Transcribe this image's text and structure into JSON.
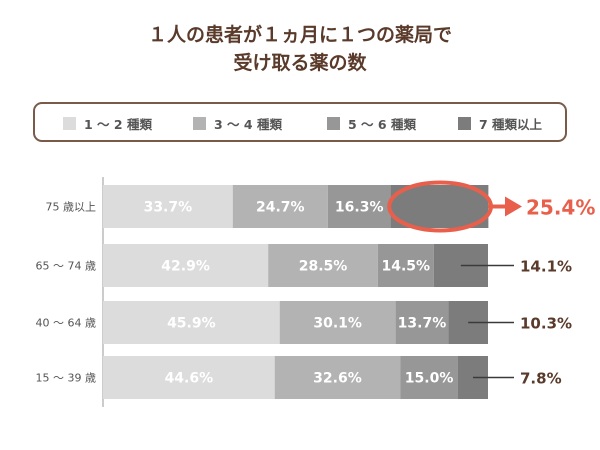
{
  "title": {
    "line1": "１人の患者が１ヵ月に１つの薬局で",
    "line2": "受け取る薬の数"
  },
  "colors": {
    "s1": "#dcdcdc",
    "s2": "#b3b3b3",
    "s3": "#979797",
    "s4": "#7c7c7c",
    "highlight": "#e8604c",
    "label_dark": "#5a3a2a",
    "category_text": "#555555"
  },
  "chart_data": {
    "type": "bar",
    "orientation": "horizontal",
    "stacked": true,
    "categories": [
      "75 歳以上",
      "65 ～ 74 歳",
      "40 ～ 64 歳",
      "15 ～ 39 歳"
    ],
    "series": [
      {
        "name": "1 ～ 2 種類",
        "values": [
          33.7,
          42.9,
          45.9,
          44.6
        ],
        "labels": [
          "33.7%",
          "42.9%",
          "45.9%",
          "44.6%"
        ]
      },
      {
        "name": "3 ～ 4 種類",
        "values": [
          24.7,
          28.5,
          30.1,
          32.6
        ],
        "labels": [
          "24.7%",
          "28.5%",
          "30.1%",
          "32.6%"
        ]
      },
      {
        "name": "5 ～ 6 種類",
        "values": [
          16.3,
          14.5,
          13.7,
          15.0
        ],
        "labels": [
          "16.3%",
          "14.5%",
          "13.7%",
          "15.0%"
        ]
      },
      {
        "name": "7 種類以上",
        "values": [
          25.4,
          14.1,
          10.3,
          7.8
        ],
        "labels": [
          "25.4%",
          "14.1%",
          "10.3%",
          "7.8%"
        ]
      }
    ],
    "xlim": [
      0,
      100
    ],
    "highlight": {
      "category_index": 0,
      "series_index": 3
    },
    "legend_position": "top"
  }
}
